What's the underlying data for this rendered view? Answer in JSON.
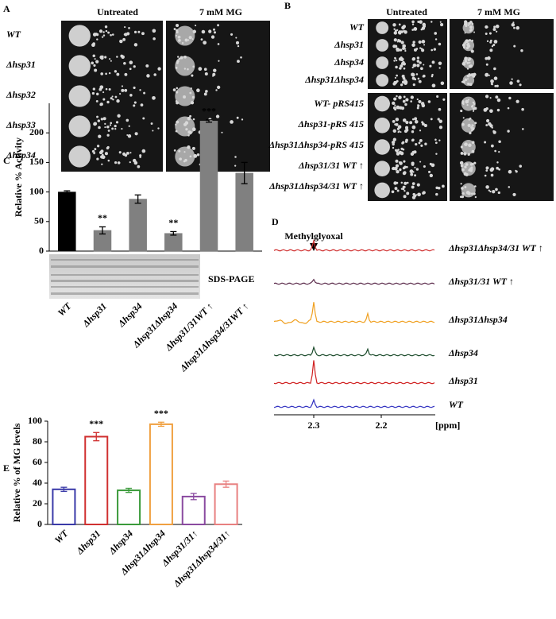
{
  "panel_a": {
    "letter": "A",
    "columns": [
      "Untreated",
      "7 mM MG"
    ],
    "rows": [
      "WT",
      "Δhsp31",
      "Δhsp32",
      "Δhsp33",
      "Δhsp34"
    ]
  },
  "panel_b": {
    "letter": "B",
    "columns": [
      "Untreated",
      "7 mM MG"
    ],
    "rows": [
      "WT",
      "Δhsp31",
      "Δhsp34",
      "Δhsp31Δhsp34",
      "WT- pRS415",
      "Δhsp31-pRS 415",
      "Δhsp31Δhsp34-pRS 415",
      "Δhsp31/31 WT ↑",
      "Δhsp31Δhsp34/31 WT ↑"
    ]
  },
  "panel_c": {
    "letter": "C",
    "gel_label": "SDS-PAGE"
  },
  "panel_d": {
    "letter": "D",
    "peak_label": "Methylglyoxal",
    "xticks": [
      "2.3",
      "2.2"
    ],
    "xunit": "[ppm]",
    "traces": [
      {
        "label": "Δhsp31Δhsp34/31 WT ↑",
        "color": "#d03030"
      },
      {
        "label": "Δhsp31/31 WT  ↑",
        "color": "#5a2a4a"
      },
      {
        "label": "Δhsp31Δhsp34",
        "color": "#f0a020"
      },
      {
        "label": "Δhsp34",
        "color": "#1a4a2a"
      },
      {
        "label": "Δhsp31",
        "color": "#d02020"
      },
      {
        "label": "WT",
        "color": "#3030c0"
      }
    ]
  },
  "panel_e": {
    "letter": "E"
  },
  "chart_data": [
    {
      "type": "bar",
      "ylabel": "Relative % Activity",
      "categories": [
        "WT",
        "Δhsp31",
        "Δhsp34",
        "Δhsp31Δhsp34",
        "Δhsp31/31WT ↑",
        "Δhsp31Δhsp34/31WT ↑"
      ],
      "values": [
        100,
        35,
        88,
        30,
        220,
        132
      ],
      "errors": [
        2,
        6,
        7,
        3,
        2,
        18
      ],
      "value_annotations": [
        null,
        "**",
        null,
        "**",
        "***",
        null
      ],
      "colors": [
        "#000000",
        "#808080",
        "#808080",
        "#808080",
        "#808080",
        "#808080"
      ],
      "filled": true,
      "ylim": [
        0,
        250
      ],
      "yticks": [
        0,
        50,
        100,
        150,
        200
      ]
    },
    {
      "type": "bar",
      "ylabel": "Relative % of MG levels",
      "categories": [
        "WT",
        "Δhsp31",
        "Δhsp34",
        "Δhsp31Δhsp34",
        "Δhsp31/31↑",
        "Δhsp31Δhsp34/31↑"
      ],
      "values": [
        34,
        85,
        33,
        97,
        27,
        39
      ],
      "errors": [
        2,
        4,
        2,
        2,
        3,
        3
      ],
      "value_annotations": [
        null,
        "***",
        null,
        "***",
        null,
        null
      ],
      "colors": [
        "#3a3aa8",
        "#d03030",
        "#3a9a3a",
        "#f0a040",
        "#8a4aa0",
        "#e88080"
      ],
      "filled": false,
      "ylim": [
        0,
        100
      ],
      "yticks": [
        0,
        20,
        40,
        60,
        80,
        100
      ]
    }
  ]
}
